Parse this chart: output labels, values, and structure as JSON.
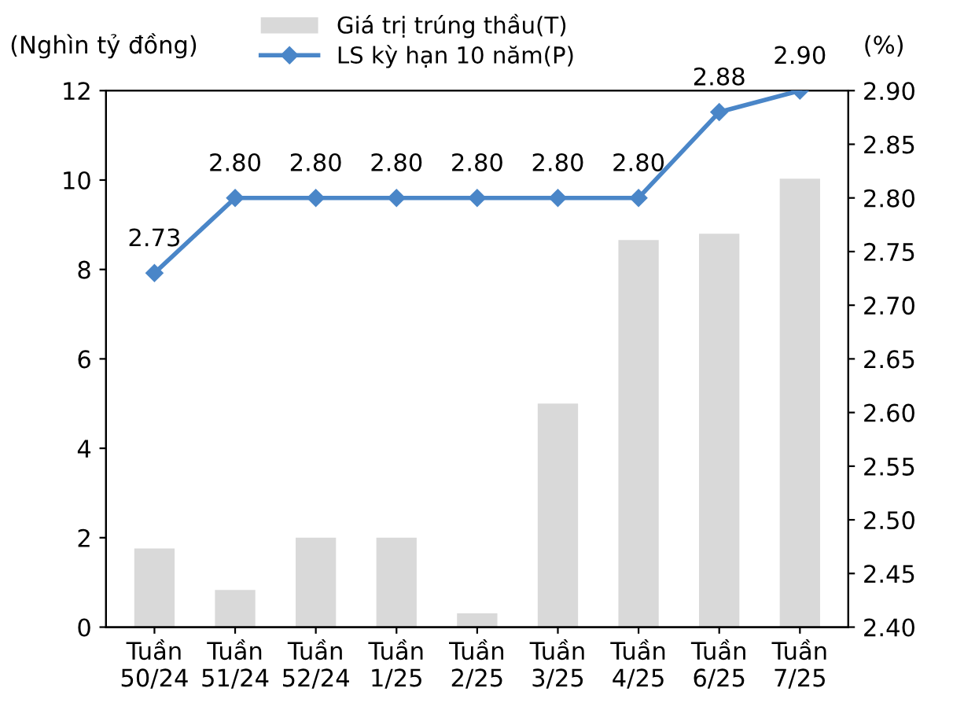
{
  "chart_data": {
    "type": "bar",
    "ylabel": "(Nghìn tỷ đồng)",
    "y2label": "(%)",
    "categories": [
      "Tuần\n50/24",
      "Tuần\n51/24",
      "Tuần\n52/24",
      "Tuần\n1/25",
      "Tuần\n2/25",
      "Tuần\n3/25",
      "Tuần\n4/25",
      "Tuần\n6/25",
      "Tuần\n7/25"
    ],
    "series": [
      {
        "name": "Giá trị trúng thầu(T)",
        "color": "#d9d9d9",
        "values": [
          1.76,
          0.83,
          2.0,
          2.0,
          0.31,
          5.0,
          8.66,
          8.8,
          10.03
        ]
      },
      {
        "name": "LS kỳ hạn 10 năm(P)",
        "type": "line",
        "axis": "y2",
        "color": "#4a86c8",
        "marker": "diamond",
        "values": [
          2.73,
          2.8,
          2.8,
          2.8,
          2.8,
          2.8,
          2.8,
          2.88,
          2.9
        ],
        "value_labels": [
          "2.73",
          "2.80",
          "2.80",
          "2.80",
          "2.80",
          "2.80",
          "2.80",
          "2.88",
          "2.90"
        ]
      }
    ],
    "ylim": [
      0,
      12
    ],
    "yticks": [
      0,
      2,
      4,
      6,
      8,
      10,
      12
    ],
    "y2lim": [
      2.4,
      2.9
    ],
    "y2ticks": [
      "2.40",
      "2.45",
      "2.50",
      "2.55",
      "2.60",
      "2.65",
      "2.70",
      "2.75",
      "2.80",
      "2.85",
      "2.90"
    ],
    "legend": "top",
    "grid": false
  }
}
